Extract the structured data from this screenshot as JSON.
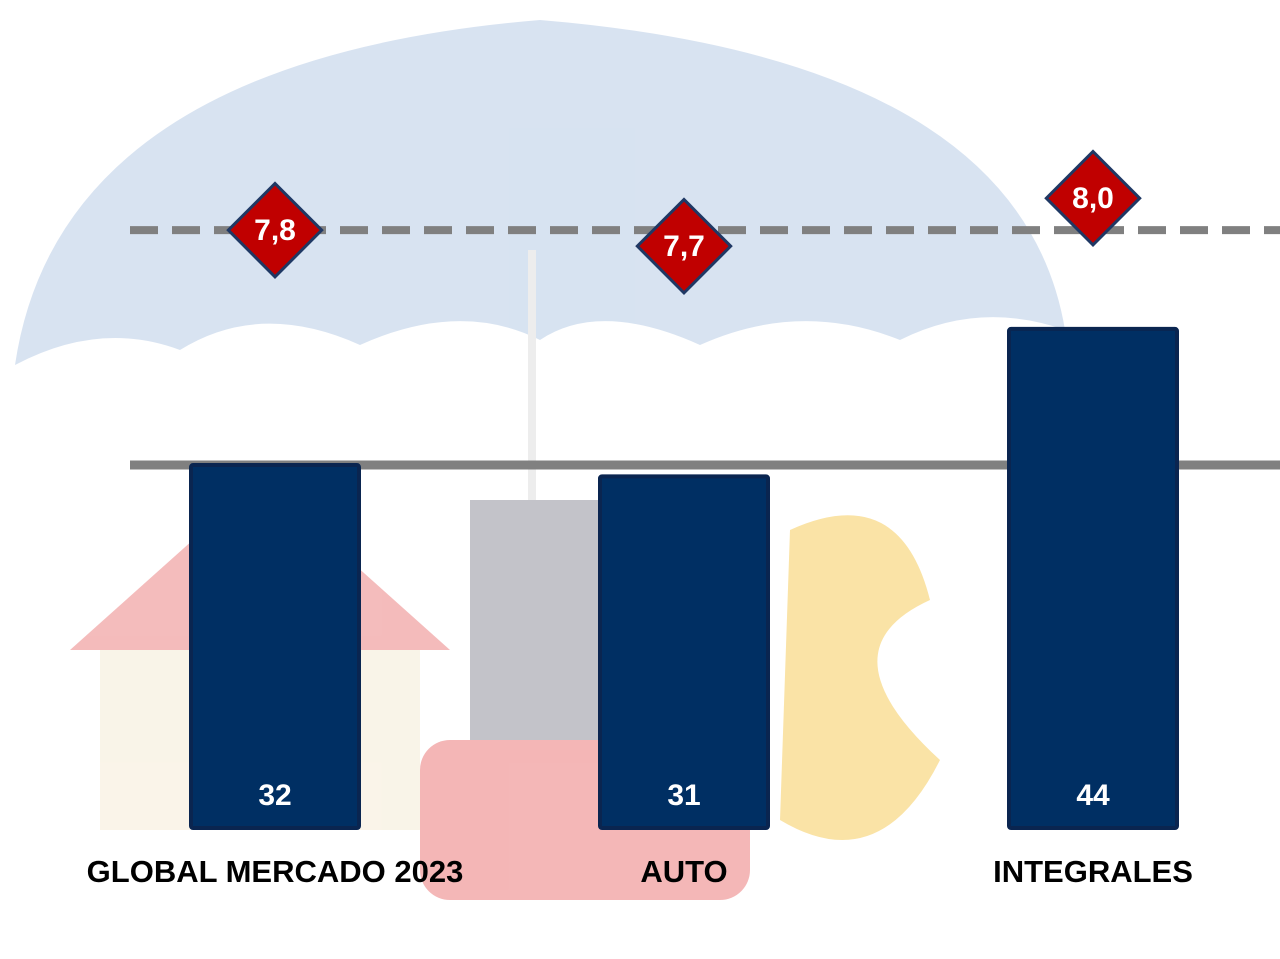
{
  "chart_data": {
    "type": "bar",
    "categories": [
      "GLOBAL MERCADO 2023",
      "AUTO",
      "INTEGRALES"
    ],
    "series": [
      {
        "values": [
          32,
          31,
          44
        ],
        "color": "#002f63"
      },
      {
        "type": "scatter",
        "axis": "y2",
        "values": [
          7.8,
          7.7,
          8.0
        ],
        "value_labels": [
          "7,8",
          "7,7",
          "8,0"
        ],
        "color": "#c00000"
      }
    ],
    "ylim": [
      0,
      73
    ],
    "y2lim": [
      4.06,
      9.24
    ]
  }
}
